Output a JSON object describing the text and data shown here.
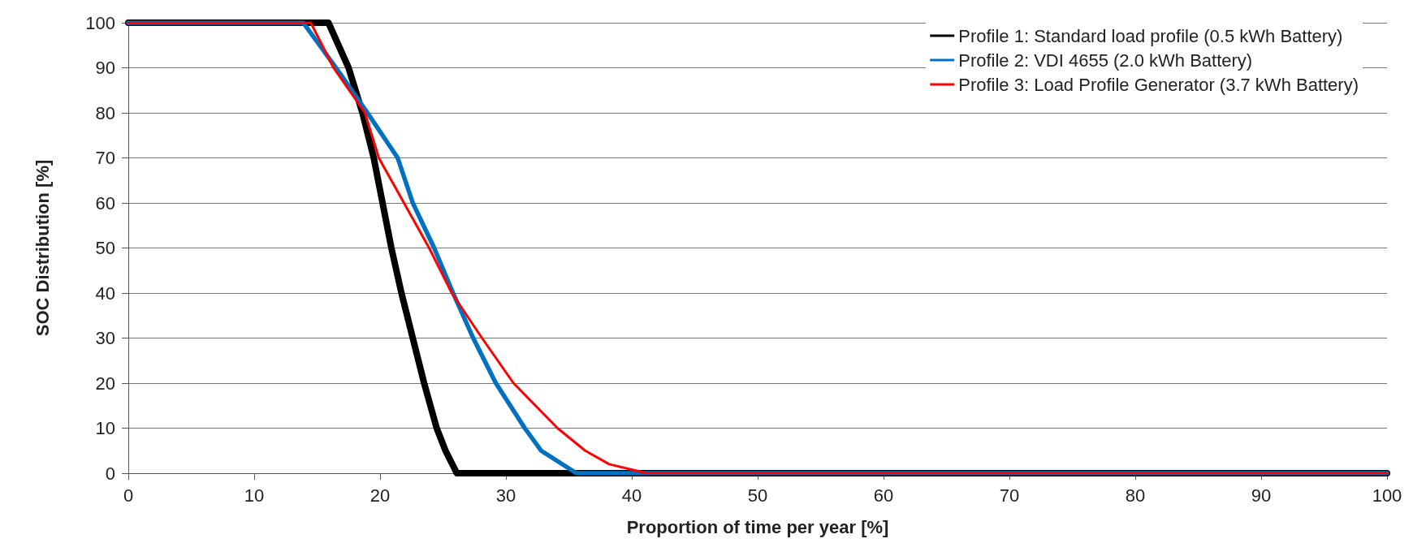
{
  "chart_data": {
    "type": "line",
    "xlabel": "Proportion of time per year [%]",
    "ylabel": "SOC Distribution [%]",
    "xlim": [
      0,
      100
    ],
    "xticks": [
      0,
      10,
      20,
      30,
      40,
      50,
      60,
      70,
      80,
      90,
      100
    ],
    "ylim": [
      0,
      100
    ],
    "yticks": [
      0,
      10,
      20,
      30,
      40,
      50,
      60,
      70,
      80,
      90,
      100
    ],
    "grid": "y",
    "legend": "top right",
    "marker": "none",
    "line_style": "solid",
    "series": [
      {
        "name": "Profile 1: Standard load profile (0.5 kWh Battery)",
        "color": "#000000",
        "x": [
          0,
          15.9,
          17.5,
          18.6,
          19.5,
          20.2,
          20.9,
          21.7,
          22.6,
          23.5,
          24.5,
          25.2,
          26.1,
          100
        ],
        "values": [
          100,
          100,
          90,
          80,
          70,
          60,
          50,
          40,
          30,
          20,
          10,
          5,
          0,
          0
        ]
      },
      {
        "name": "Profile 2: VDI 4655 (2.0 kWh Battery)",
        "color": "#0070c0",
        "x": [
          0,
          13.9,
          16.5,
          19,
          21.4,
          22.6,
          24.3,
          25.8,
          27.4,
          29.2,
          31.5,
          32.8,
          35.6,
          100
        ],
        "values": [
          100,
          100,
          90,
          80,
          70,
          60,
          50,
          40,
          30,
          20,
          10,
          5,
          0,
          0
        ]
      },
      {
        "name": "Profile 3: Load Profile Generator (3.7 kWh Battery)",
        "color": "#ff0000",
        "x": [
          0,
          14.5,
          16.3,
          18.8,
          19.9,
          21.9,
          23.9,
          25.7,
          28.1,
          30.6,
          34.1,
          36.3,
          38.2,
          41.2,
          100
        ],
        "values": [
          100,
          100,
          90,
          80,
          70,
          60,
          50,
          40,
          30,
          20,
          10,
          5,
          2,
          0,
          0
        ]
      }
    ]
  }
}
